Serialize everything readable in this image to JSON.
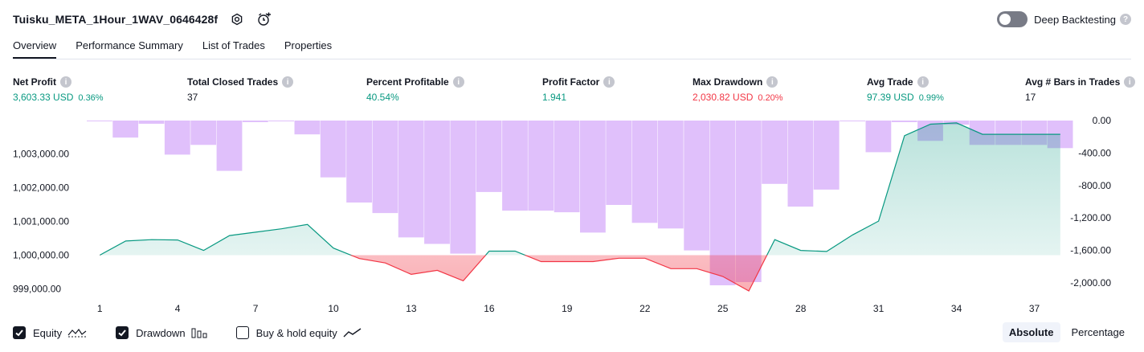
{
  "header": {
    "title": "Tuisku_META_1Hour_1WAV_0646428f",
    "settings_icon": "gear-icon",
    "alert_icon": "add-alert-icon"
  },
  "deep_backtesting": {
    "label": "Deep Backtesting",
    "enabled": false,
    "help": "?"
  },
  "tabs": [
    {
      "label": "Overview",
      "active": true
    },
    {
      "label": "Performance Summary",
      "active": false
    },
    {
      "label": "List of Trades",
      "active": false
    },
    {
      "label": "Properties",
      "active": false
    }
  ],
  "metrics": [
    {
      "label": "Net Profit",
      "value": "3,603.33 USD",
      "pct": "0.36%",
      "tone": "pos"
    },
    {
      "label": "Total Closed Trades",
      "value": "37",
      "pct": "",
      "tone": "plain"
    },
    {
      "label": "Percent Profitable",
      "value": "40.54%",
      "pct": "",
      "tone": "pos"
    },
    {
      "label": "Profit Factor",
      "value": "1.941",
      "pct": "",
      "tone": "pos"
    },
    {
      "label": "Max Drawdown",
      "value": "2,030.82 USD",
      "pct": "0.20%",
      "tone": "neg"
    },
    {
      "label": "Avg Trade",
      "value": "97.39 USD",
      "pct": "0.99%",
      "tone": "pos"
    },
    {
      "label": "Avg # Bars in Trades",
      "value": "17",
      "pct": "",
      "tone": "plain"
    }
  ],
  "chart_data": {
    "type": "line",
    "x_ticks": [
      "1",
      "4",
      "7",
      "10",
      "13",
      "16",
      "19",
      "22",
      "25",
      "28",
      "31",
      "34",
      "37"
    ],
    "left_axis_ticks": [
      "1,003,000.00",
      "1,002,000.00",
      "1,001,000.00",
      "1,000,000.00",
      "999,000.00"
    ],
    "right_axis_ticks": [
      "0.00",
      "-400.00",
      "-800.00",
      "-1,200.00",
      "-1,600.00",
      "-2,000.00"
    ],
    "left_ylim": [
      998600,
      1004000
    ],
    "right_ylim": [
      -2200,
      0
    ],
    "series": [
      {
        "name": "Equity",
        "color": "#089981",
        "x": [
          1,
          2,
          3,
          4,
          5,
          6,
          7,
          8,
          9,
          10,
          11,
          12,
          13,
          14,
          15,
          16,
          17,
          18,
          19,
          20,
          21,
          22,
          23,
          24,
          25,
          26,
          27,
          28,
          29,
          30,
          31,
          32,
          33,
          34,
          35,
          36,
          37,
          38
        ],
        "values": [
          1000000,
          1000420,
          1000460,
          1000450,
          1000140,
          1000580,
          1000680,
          1000780,
          1000910,
          1000210,
          999900,
          999770,
          999430,
          999550,
          999240,
          1000120,
          1000120,
          999810,
          999810,
          999810,
          999910,
          999910,
          999600,
          999600,
          999370,
          998940,
          1000460,
          1000140,
          1000110,
          1000600,
          1001010,
          1003540,
          1003880,
          1003920,
          1003580,
          1003580,
          1003580,
          1003580
        ]
      },
      {
        "name": "Drawdown",
        "color": "#c78cf8",
        "x": [
          1,
          2,
          3,
          4,
          5,
          6,
          7,
          8,
          9,
          10,
          11,
          12,
          13,
          14,
          15,
          16,
          17,
          18,
          19,
          20,
          21,
          22,
          23,
          24,
          25,
          26,
          27,
          28,
          29,
          30,
          31,
          32,
          33,
          34,
          35,
          36,
          37,
          38
        ],
        "values": [
          -10,
          -210,
          -40,
          -420,
          -300,
          -620,
          -20,
          -10,
          -170,
          -700,
          -1010,
          -1140,
          -1440,
          -1520,
          -1640,
          -880,
          -1110,
          -1110,
          -1130,
          -1380,
          -1040,
          -1260,
          -1330,
          -1600,
          -2030,
          -1990,
          -780,
          -1060,
          -850,
          0,
          -390,
          -20,
          -250,
          -50,
          -300,
          -300,
          -300,
          -340
        ]
      }
    ]
  },
  "legend": [
    {
      "label": "Equity",
      "checked": true,
      "icon": "equity-line-icon"
    },
    {
      "label": "Drawdown",
      "checked": true,
      "icon": "drawdown-bars-icon"
    },
    {
      "label": "Buy & hold equity",
      "checked": false,
      "icon": "buy-hold-line-icon"
    }
  ],
  "modes": [
    {
      "label": "Absolute",
      "active": true
    },
    {
      "label": "Percentage",
      "active": false
    }
  ]
}
